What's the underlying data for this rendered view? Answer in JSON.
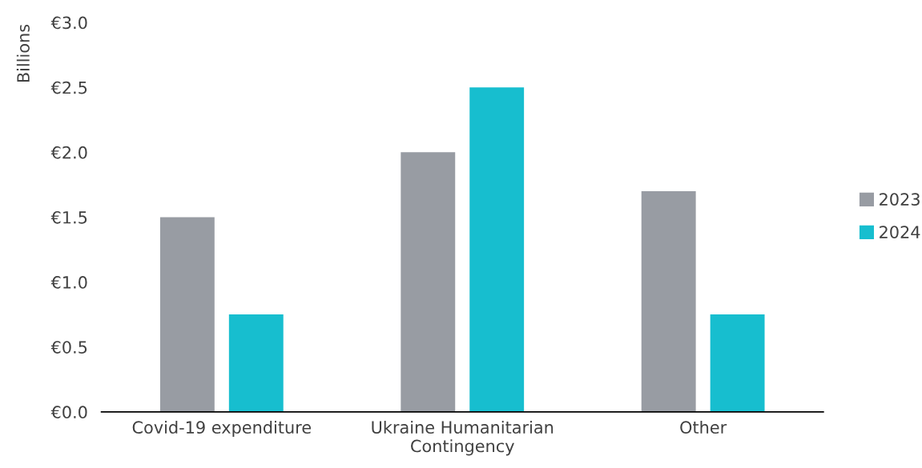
{
  "chart_data": {
    "type": "bar",
    "ylabel": "Billions",
    "categories": [
      "Covid-19 expenditure",
      "Ukraine Humanitarian\nContingency",
      "Other"
    ],
    "series": [
      {
        "name": "2023",
        "color": "#989ca3",
        "values": [
          1.5,
          2.0,
          1.7
        ]
      },
      {
        "name": "2024",
        "color": "#17becf",
        "values": [
          0.75,
          2.5,
          0.75
        ]
      }
    ],
    "ylim": [
      0,
      3.0
    ],
    "yticks": [
      {
        "value": 0,
        "label": "€0.0"
      },
      {
        "value": 0.5,
        "label": "€0.5"
      },
      {
        "value": 1.0,
        "label": "€1.0"
      },
      {
        "value": 1.5,
        "label": "€1.5"
      },
      {
        "value": 2.0,
        "label": "€2.0"
      },
      {
        "value": 2.5,
        "label": "€2.5"
      },
      {
        "value": 3.0,
        "label": "€3.0"
      }
    ],
    "grid": false,
    "legend": "right"
  }
}
